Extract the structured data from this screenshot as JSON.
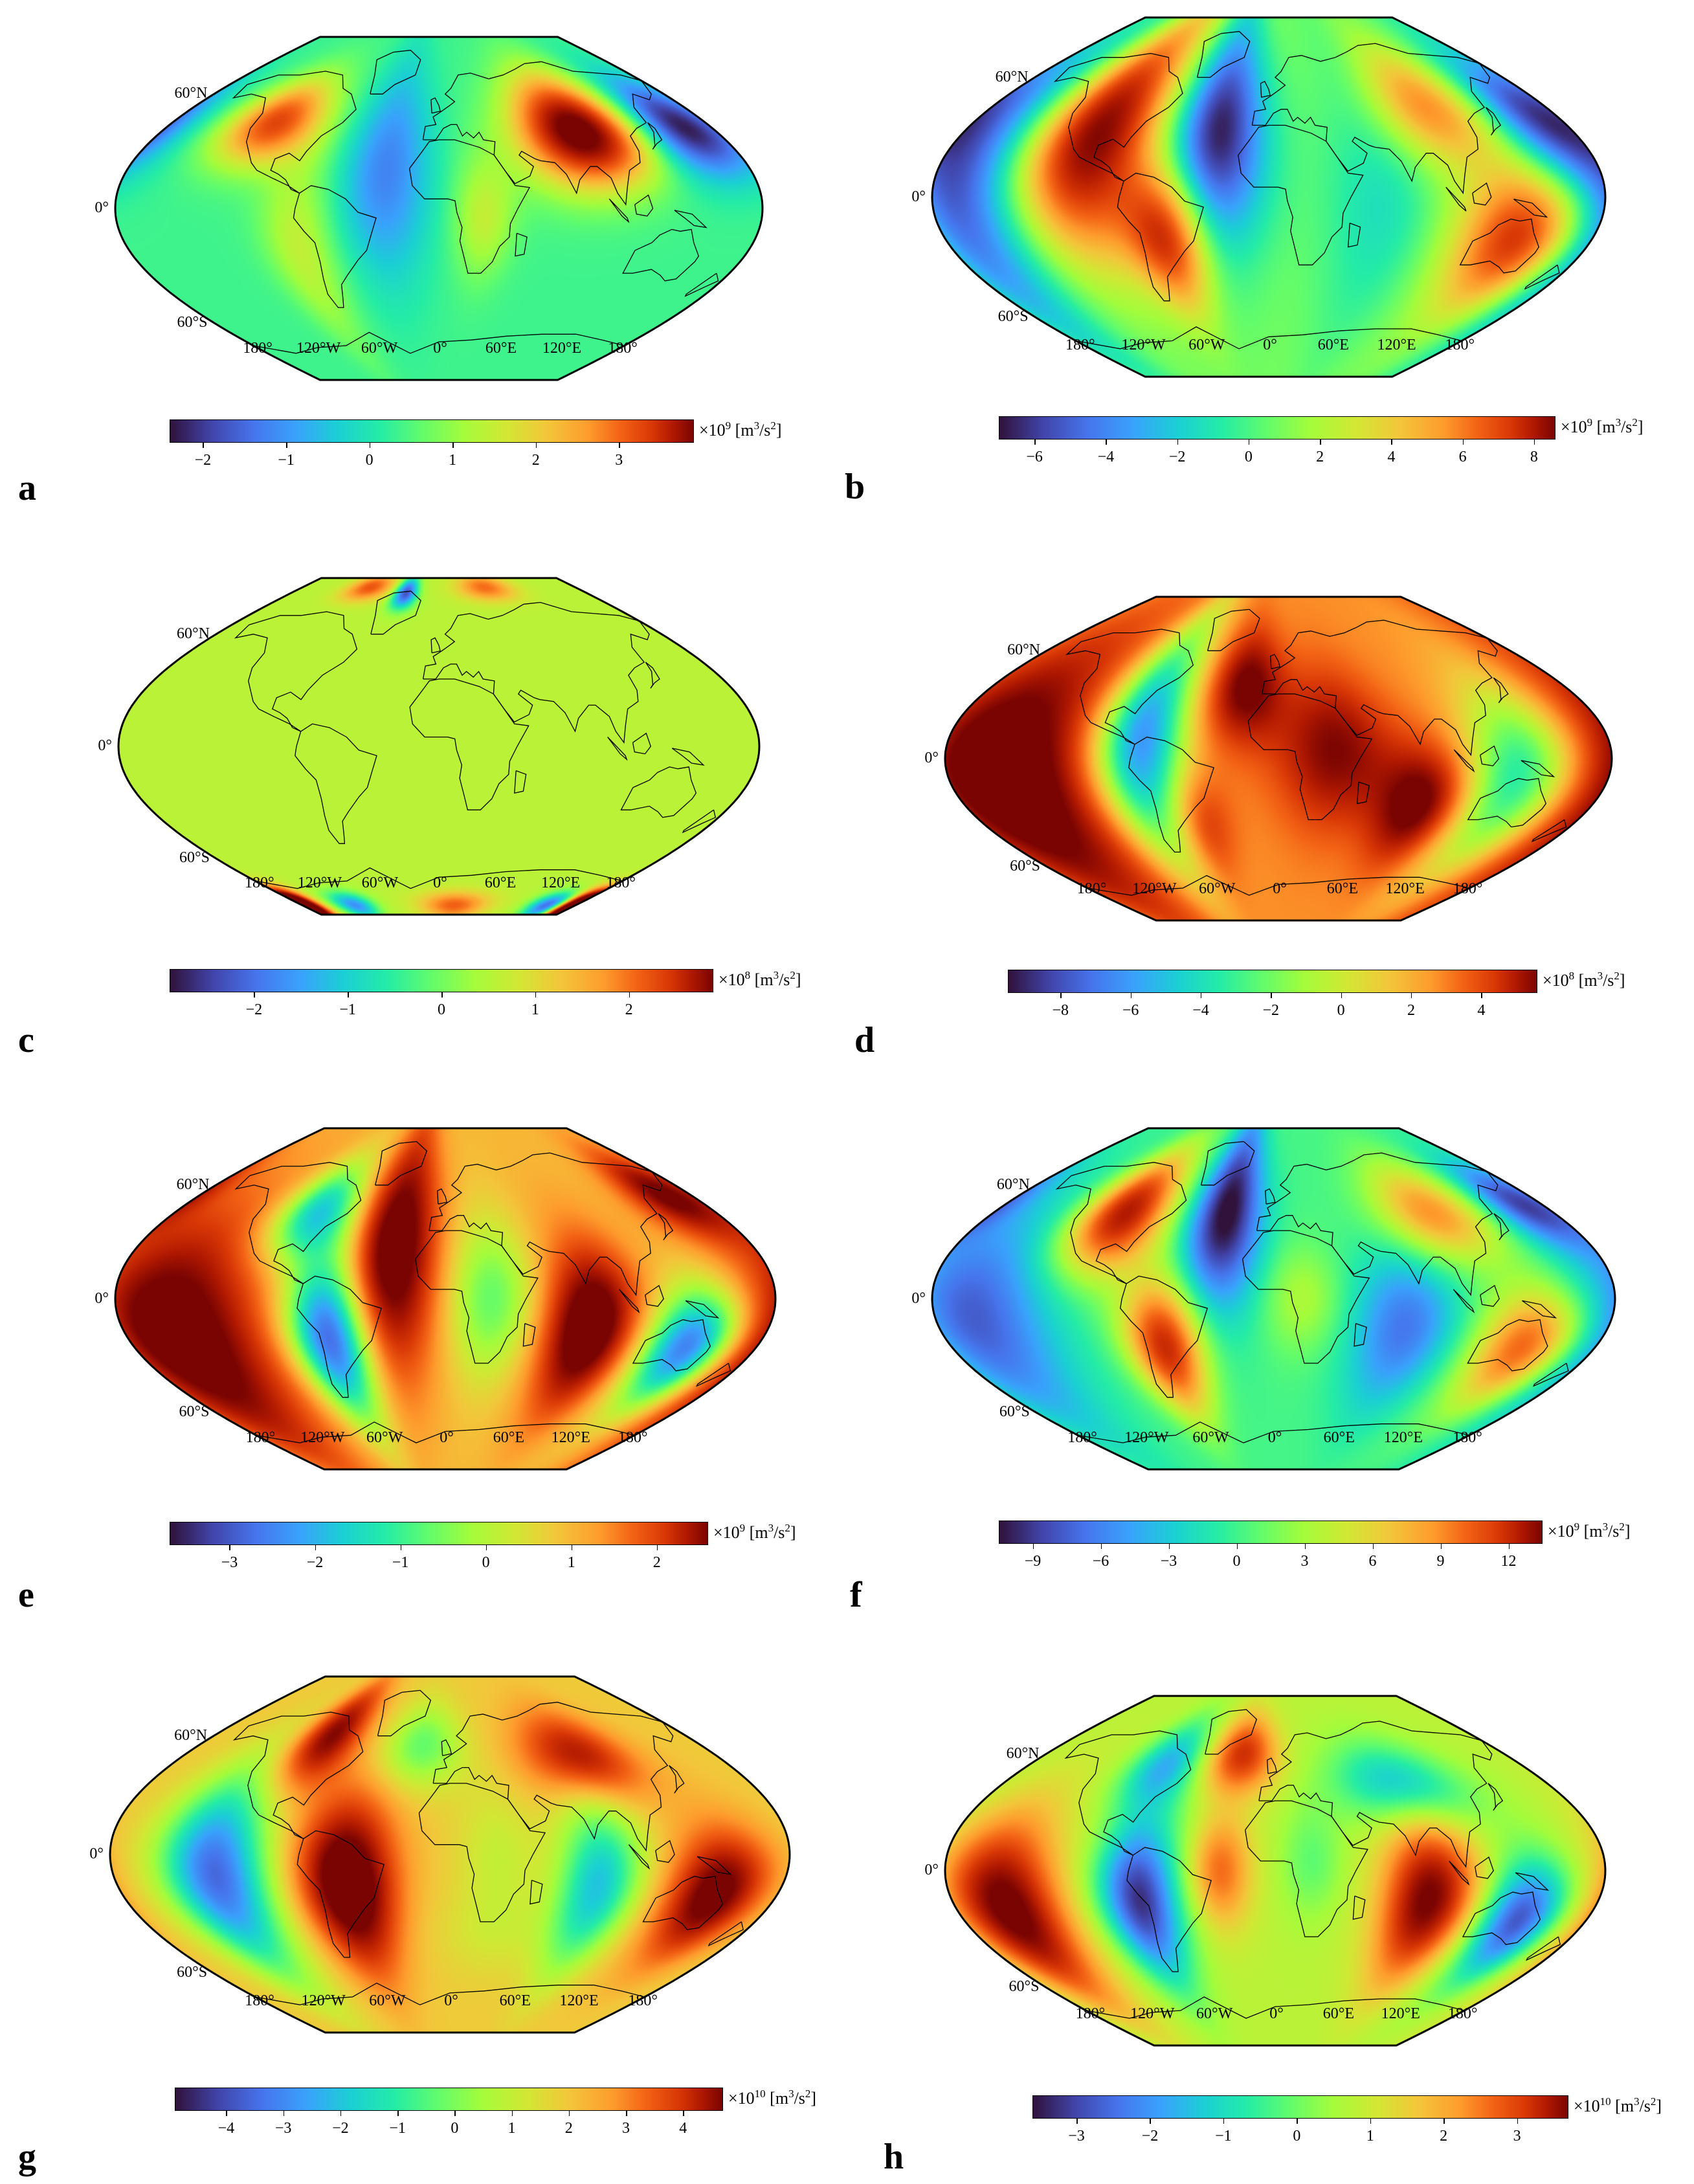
{
  "colormap": [
    "#30123b",
    "#4145ab",
    "#4675ed",
    "#39a2fc",
    "#1bcfd4",
    "#24eca6",
    "#61fc6c",
    "#a4fc3b",
    "#d1e834",
    "#f3c63a",
    "#fe9b2d",
    "#f36315",
    "#d93806",
    "#b11901",
    "#7a0402"
  ],
  "panels": [
    {
      "letter": "a",
      "lat_labels": [
        "60°N",
        "0°",
        "60°S"
      ],
      "lon_labels": [
        "180°",
        "120°W",
        "60°W",
        "0°",
        "60°E",
        "120°E",
        "180°"
      ],
      "colorbar": {
        "min": -2.4,
        "max": 3.9,
        "ticks": [
          "−2",
          "−1",
          "0",
          "1",
          "2",
          "3"
        ],
        "tick_values": [
          -2,
          -1,
          0,
          1,
          2,
          3
        ],
        "unit_prefix": "×10",
        "unit_exp": "9",
        "unit_main": " [m",
        "unit_sup": "3",
        "unit_mid": "/s",
        "unit_sup2": "2",
        "unit_end": "]"
      },
      "background": 0.05,
      "blobs": [
        {
          "lon": -110,
          "lat": 45,
          "v": 2.8,
          "rx": 22,
          "ry": 16
        },
        {
          "lon": 90,
          "lat": 40,
          "v": 4.2,
          "rx": 28,
          "ry": 20
        },
        {
          "lon": 160,
          "lat": 42,
          "v": -2.5,
          "rx": 22,
          "ry": 18
        },
        {
          "lon": -30,
          "lat": 20,
          "v": -1.4,
          "rx": 18,
          "ry": 40
        },
        {
          "lon": -80,
          "lat": -20,
          "v": 1.0,
          "rx": 14,
          "ry": 35
        },
        {
          "lon": 25,
          "lat": -5,
          "v": 1.0,
          "rx": 12,
          "ry": 22
        }
      ]
    },
    {
      "letter": "b",
      "lat_labels": [
        "60°N",
        "0°",
        "60°S"
      ],
      "lon_labels": [
        "180°",
        "120°W",
        "60°W",
        "0°",
        "60°E",
        "120°E",
        "180°"
      ],
      "colorbar": {
        "min": -7,
        "max": 8.6,
        "ticks": [
          "−6",
          "−4",
          "−2",
          "0",
          "2",
          "4",
          "6",
          "8"
        ],
        "tick_values": [
          -6,
          -4,
          -2,
          0,
          2,
          4,
          6,
          8
        ],
        "unit_prefix": "×10",
        "unit_exp": "9",
        "unit_main": " [m",
        "unit_sup": "3",
        "unit_mid": "/s",
        "unit_sup2": "2",
        "unit_end": "]"
      },
      "background": 0.0,
      "blobs": [
        {
          "lon": -100,
          "lat": 30,
          "v": 8.5,
          "rx": 25,
          "ry": 40
        },
        {
          "lon": -55,
          "lat": -20,
          "v": 7.0,
          "rx": 16,
          "ry": 25
        },
        {
          "lon": -30,
          "lat": 30,
          "v": -7.0,
          "rx": 20,
          "ry": 40
        },
        {
          "lon": -170,
          "lat": 0,
          "v": -6.0,
          "rx": 25,
          "ry": 50
        },
        {
          "lon": 160,
          "lat": 40,
          "v": -4.0,
          "rx": 20,
          "ry": 20
        },
        {
          "lon": 140,
          "lat": -20,
          "v": 7.0,
          "rx": 25,
          "ry": 25
        },
        {
          "lon": 100,
          "lat": 45,
          "v": 4.5,
          "rx": 25,
          "ry": 20
        },
        {
          "lon": 60,
          "lat": 0,
          "v": -2.0,
          "rx": 22,
          "ry": 50
        }
      ]
    },
    {
      "letter": "c",
      "lat_labels": [
        "60°N",
        "0°",
        "60°S"
      ],
      "lon_labels": [
        "180°",
        "120°W",
        "60°W",
        "0°",
        "60°E",
        "120°E",
        "180°"
      ],
      "colorbar": {
        "min": -2.9,
        "max": 2.9,
        "ticks": [
          "−2",
          "−1",
          "0",
          "1",
          "2"
        ],
        "tick_values": [
          -2,
          -1,
          0,
          1,
          2
        ],
        "unit_prefix": "×10",
        "unit_exp": "8",
        "unit_main": " [m",
        "unit_sup": "3",
        "unit_mid": "/s",
        "unit_sup2": "2",
        "unit_end": "]"
      },
      "background": 0.2,
      "blobs": [
        {
          "lon": -40,
          "lat": 82,
          "v": -2.6,
          "rx": 10,
          "ry": 6
        },
        {
          "lon": -90,
          "lat": 85,
          "v": 1.6,
          "rx": 20,
          "ry": 5
        },
        {
          "lon": 60,
          "lat": 85,
          "v": 1.4,
          "rx": 25,
          "ry": 5
        },
        {
          "lon": -175,
          "lat": -85,
          "v": 2.9,
          "rx": 14,
          "ry": 6
        },
        {
          "lon": 175,
          "lat": -85,
          "v": 2.9,
          "rx": 14,
          "ry": 6
        },
        {
          "lon": -110,
          "lat": -85,
          "v": -2.0,
          "rx": 18,
          "ry": 5
        },
        {
          "lon": 145,
          "lat": -85,
          "v": -2.5,
          "rx": 18,
          "ry": 5
        },
        {
          "lon": 20,
          "lat": -85,
          "v": 1.5,
          "rx": 30,
          "ry": 5
        }
      ]
    },
    {
      "letter": "d",
      "lat_labels": [
        "60°N",
        "0°",
        "60°S"
      ],
      "lon_labels": [
        "180°",
        "120°W",
        "60°W",
        "0°",
        "60°E",
        "120°E",
        "180°"
      ],
      "colorbar": {
        "min": -9.5,
        "max": 5.6,
        "ticks": [
          "−8",
          "−6",
          "−4",
          "−2",
          "0",
          "2",
          "4"
        ],
        "tick_values": [
          -8,
          -6,
          -4,
          -2,
          0,
          2,
          4
        ],
        "unit_prefix": "×10",
        "unit_exp": "8",
        "unit_main": " [m",
        "unit_sup": "3",
        "unit_mid": "/s",
        "unit_sup2": "2",
        "unit_end": "]"
      },
      "background": 1.5,
      "blobs": [
        {
          "lon": -150,
          "lat": -10,
          "v": 6.0,
          "rx": 35,
          "ry": 50
        },
        {
          "lon": -75,
          "lat": 10,
          "v": -8.5,
          "rx": 18,
          "ry": 45
        },
        {
          "lon": -20,
          "lat": 40,
          "v": 4.5,
          "rx": 16,
          "ry": 22
        },
        {
          "lon": 30,
          "lat": 5,
          "v": 4.0,
          "rx": 22,
          "ry": 30
        },
        {
          "lon": 80,
          "lat": -25,
          "v": 5.0,
          "rx": 18,
          "ry": 22
        },
        {
          "lon": 130,
          "lat": -10,
          "v": -6.0,
          "rx": 22,
          "ry": 35
        },
        {
          "lon": -45,
          "lat": -35,
          "v": 2.5,
          "rx": 12,
          "ry": 20
        }
      ]
    },
    {
      "letter": "e",
      "lat_labels": [
        "60°N",
        "0°",
        "60°S"
      ],
      "lon_labels": [
        "180°",
        "120°W",
        "60°W",
        "0°",
        "60°E",
        "120°E",
        "180°"
      ],
      "colorbar": {
        "min": -3.7,
        "max": 2.6,
        "ticks": [
          "−3",
          "−2",
          "−1",
          "0",
          "1",
          "2"
        ],
        "tick_values": [
          -3,
          -2,
          -1,
          0,
          1,
          2
        ],
        "unit_prefix": "×10",
        "unit_exp": "9",
        "unit_main": " [m",
        "unit_sup": "3",
        "unit_mid": "/s",
        "unit_sup2": "2",
        "unit_end": "]"
      },
      "background": 0.5,
      "blobs": [
        {
          "lon": -150,
          "lat": -20,
          "v": 2.7,
          "rx": 35,
          "ry": 45
        },
        {
          "lon": -85,
          "lat": 45,
          "v": -2.5,
          "rx": 18,
          "ry": 18
        },
        {
          "lon": -65,
          "lat": -20,
          "v": -3.7,
          "rx": 16,
          "ry": 30
        },
        {
          "lon": -30,
          "lat": 25,
          "v": 2.7,
          "rx": 18,
          "ry": 45
        },
        {
          "lon": 25,
          "lat": 0,
          "v": -1.5,
          "rx": 18,
          "ry": 30
        },
        {
          "lon": 80,
          "lat": -15,
          "v": 2.8,
          "rx": 18,
          "ry": 30
        },
        {
          "lon": 140,
          "lat": -25,
          "v": -3.5,
          "rx": 18,
          "ry": 22
        },
        {
          "lon": 160,
          "lat": 55,
          "v": 2.0,
          "rx": 20,
          "ry": 15
        }
      ]
    },
    {
      "letter": "f",
      "lat_labels": [
        "60°N",
        "0°",
        "60°S"
      ],
      "lon_labels": [
        "180°",
        "120°W",
        "60°W",
        "0°",
        "60°E",
        "120°E",
        "180°"
      ],
      "colorbar": {
        "min": -10.5,
        "max": 13.5,
        "ticks": [
          "−9",
          "−6",
          "−3",
          "0",
          "3",
          "6",
          "9",
          "12"
        ],
        "tick_values": [
          -9,
          -6,
          -3,
          0,
          3,
          6,
          9,
          12
        ],
        "unit_prefix": "×10",
        "unit_exp": "9",
        "unit_main": " [m",
        "unit_sup": "3",
        "unit_mid": "/s",
        "unit_sup2": "2",
        "unit_end": "]"
      },
      "background": -1.0,
      "blobs": [
        {
          "lon": -95,
          "lat": 45,
          "v": 13,
          "rx": 20,
          "ry": 22
        },
        {
          "lon": -60,
          "lat": -25,
          "v": 12,
          "rx": 15,
          "ry": 25
        },
        {
          "lon": -30,
          "lat": 45,
          "v": -10,
          "rx": 16,
          "ry": 35
        },
        {
          "lon": -160,
          "lat": -10,
          "v": -7,
          "rx": 30,
          "ry": 40
        },
        {
          "lon": 100,
          "lat": 45,
          "v": 8,
          "rx": 25,
          "ry": 18
        },
        {
          "lon": 140,
          "lat": -25,
          "v": 10,
          "rx": 20,
          "ry": 22
        },
        {
          "lon": 70,
          "lat": -15,
          "v": -6,
          "rx": 20,
          "ry": 30
        },
        {
          "lon": 15,
          "lat": 0,
          "v": 3,
          "rx": 15,
          "ry": 20
        },
        {
          "lon": 165,
          "lat": 50,
          "v": -7,
          "rx": 18,
          "ry": 15
        }
      ]
    },
    {
      "letter": "g",
      "lat_labels": [
        "60°N",
        "0°",
        "60°S"
      ],
      "lon_labels": [
        "180°",
        "120°W",
        "60°W",
        "0°",
        "60°E",
        "120°E",
        "180°"
      ],
      "colorbar": {
        "min": -4.9,
        "max": 4.7,
        "ticks": [
          "−4",
          "−3",
          "−2",
          "−1",
          "0",
          "1",
          "2",
          "3",
          "4"
        ],
        "tick_values": [
          -4,
          -3,
          -2,
          -1,
          0,
          1,
          2,
          3,
          4
        ],
        "unit_prefix": "×10",
        "unit_exp": "10",
        "unit_main": " [m",
        "unit_sup": "3",
        "unit_mid": "/s",
        "unit_sup2": "2",
        "unit_end": "]"
      },
      "background": 1.2,
      "blobs": [
        {
          "lon": -125,
          "lat": -10,
          "v": -4.9,
          "rx": 20,
          "ry": 35
        },
        {
          "lon": -55,
          "lat": -15,
          "v": 4.7,
          "rx": 18,
          "ry": 30
        },
        {
          "lon": -90,
          "lat": 60,
          "v": 3.5,
          "rx": 16,
          "ry": 18
        },
        {
          "lon": -20,
          "lat": 55,
          "v": -2.0,
          "rx": 20,
          "ry": 15
        },
        {
          "lon": 85,
          "lat": 50,
          "v": 3.0,
          "rx": 25,
          "ry": 15
        },
        {
          "lon": 80,
          "lat": -15,
          "v": -3.5,
          "rx": 16,
          "ry": 30
        },
        {
          "lon": 145,
          "lat": -20,
          "v": 4.0,
          "rx": 18,
          "ry": 22
        },
        {
          "lon": 25,
          "lat": 0,
          "v": -0.8,
          "rx": 15,
          "ry": 25
        },
        {
          "lon": 30,
          "lat": -40,
          "v": -0.5,
          "rx": 30,
          "ry": 15
        }
      ]
    },
    {
      "letter": "h",
      "lat_labels": [
        "60°N",
        "0°",
        "60°S"
      ],
      "lon_labels": [
        "180°",
        "120°W",
        "60°W",
        "0°",
        "60°E",
        "120°E",
        "180°"
      ],
      "colorbar": {
        "min": -3.6,
        "max": 3.7,
        "ticks": [
          "−3",
          "−2",
          "−1",
          "0",
          "1",
          "2",
          "3"
        ],
        "tick_values": [
          -3,
          -2,
          -1,
          0,
          1,
          2,
          3
        ],
        "unit_prefix": "×10",
        "unit_exp": "10",
        "unit_main": " [m",
        "unit_sup": "3",
        "unit_mid": "/s",
        "unit_sup2": "2",
        "unit_end": "]"
      },
      "background": 0.3,
      "blobs": [
        {
          "lon": -150,
          "lat": -20,
          "v": 3.7,
          "rx": 22,
          "ry": 32
        },
        {
          "lon": -75,
          "lat": -15,
          "v": -3.6,
          "rx": 16,
          "ry": 30
        },
        {
          "lon": -80,
          "lat": 55,
          "v": -2.0,
          "rx": 18,
          "ry": 16
        },
        {
          "lon": -25,
          "lat": 60,
          "v": 2.5,
          "rx": 18,
          "ry": 14
        },
        {
          "lon": 80,
          "lat": 45,
          "v": -2.0,
          "rx": 30,
          "ry": 15
        },
        {
          "lon": 85,
          "lat": -15,
          "v": 3.5,
          "rx": 18,
          "ry": 28
        },
        {
          "lon": 140,
          "lat": -25,
          "v": -3.2,
          "rx": 16,
          "ry": 22
        },
        {
          "lon": -30,
          "lat": 0,
          "v": 1.8,
          "rx": 12,
          "ry": 20
        },
        {
          "lon": 20,
          "lat": 5,
          "v": -0.8,
          "rx": 12,
          "ry": 20
        }
      ]
    }
  ]
}
